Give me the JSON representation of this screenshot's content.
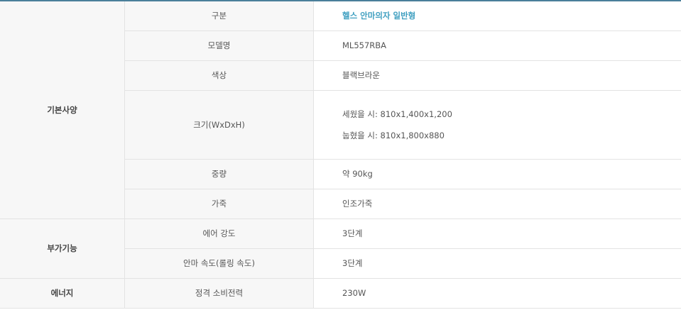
{
  "colors": {
    "accent": "#3f9fc0",
    "top_border": "#4a7f9a"
  },
  "groups": {
    "basic": "기본사양",
    "extra": "부가기능",
    "energy": "에너지"
  },
  "rows": [
    {
      "key": "구분",
      "value": "헬스 안마의자 일반형"
    },
    {
      "key": "모델명",
      "value": "ML557RBA"
    },
    {
      "key": "색상",
      "value": "블랙브라운"
    },
    {
      "key": "크기(WxDxH)",
      "value_lines": [
        "세웠을 시: 810x1,400x1,200",
        "눕혔을 시: 810x1,800x880"
      ]
    },
    {
      "key": "중량",
      "value": "약 90kg"
    },
    {
      "key": "가죽",
      "value": "인조가죽"
    },
    {
      "key": "에어 강도",
      "value": "3단계"
    },
    {
      "key": "안마 속도(롤링 속도)",
      "value": "3단계"
    },
    {
      "key": "정격 소비전력",
      "value": "230W"
    }
  ]
}
